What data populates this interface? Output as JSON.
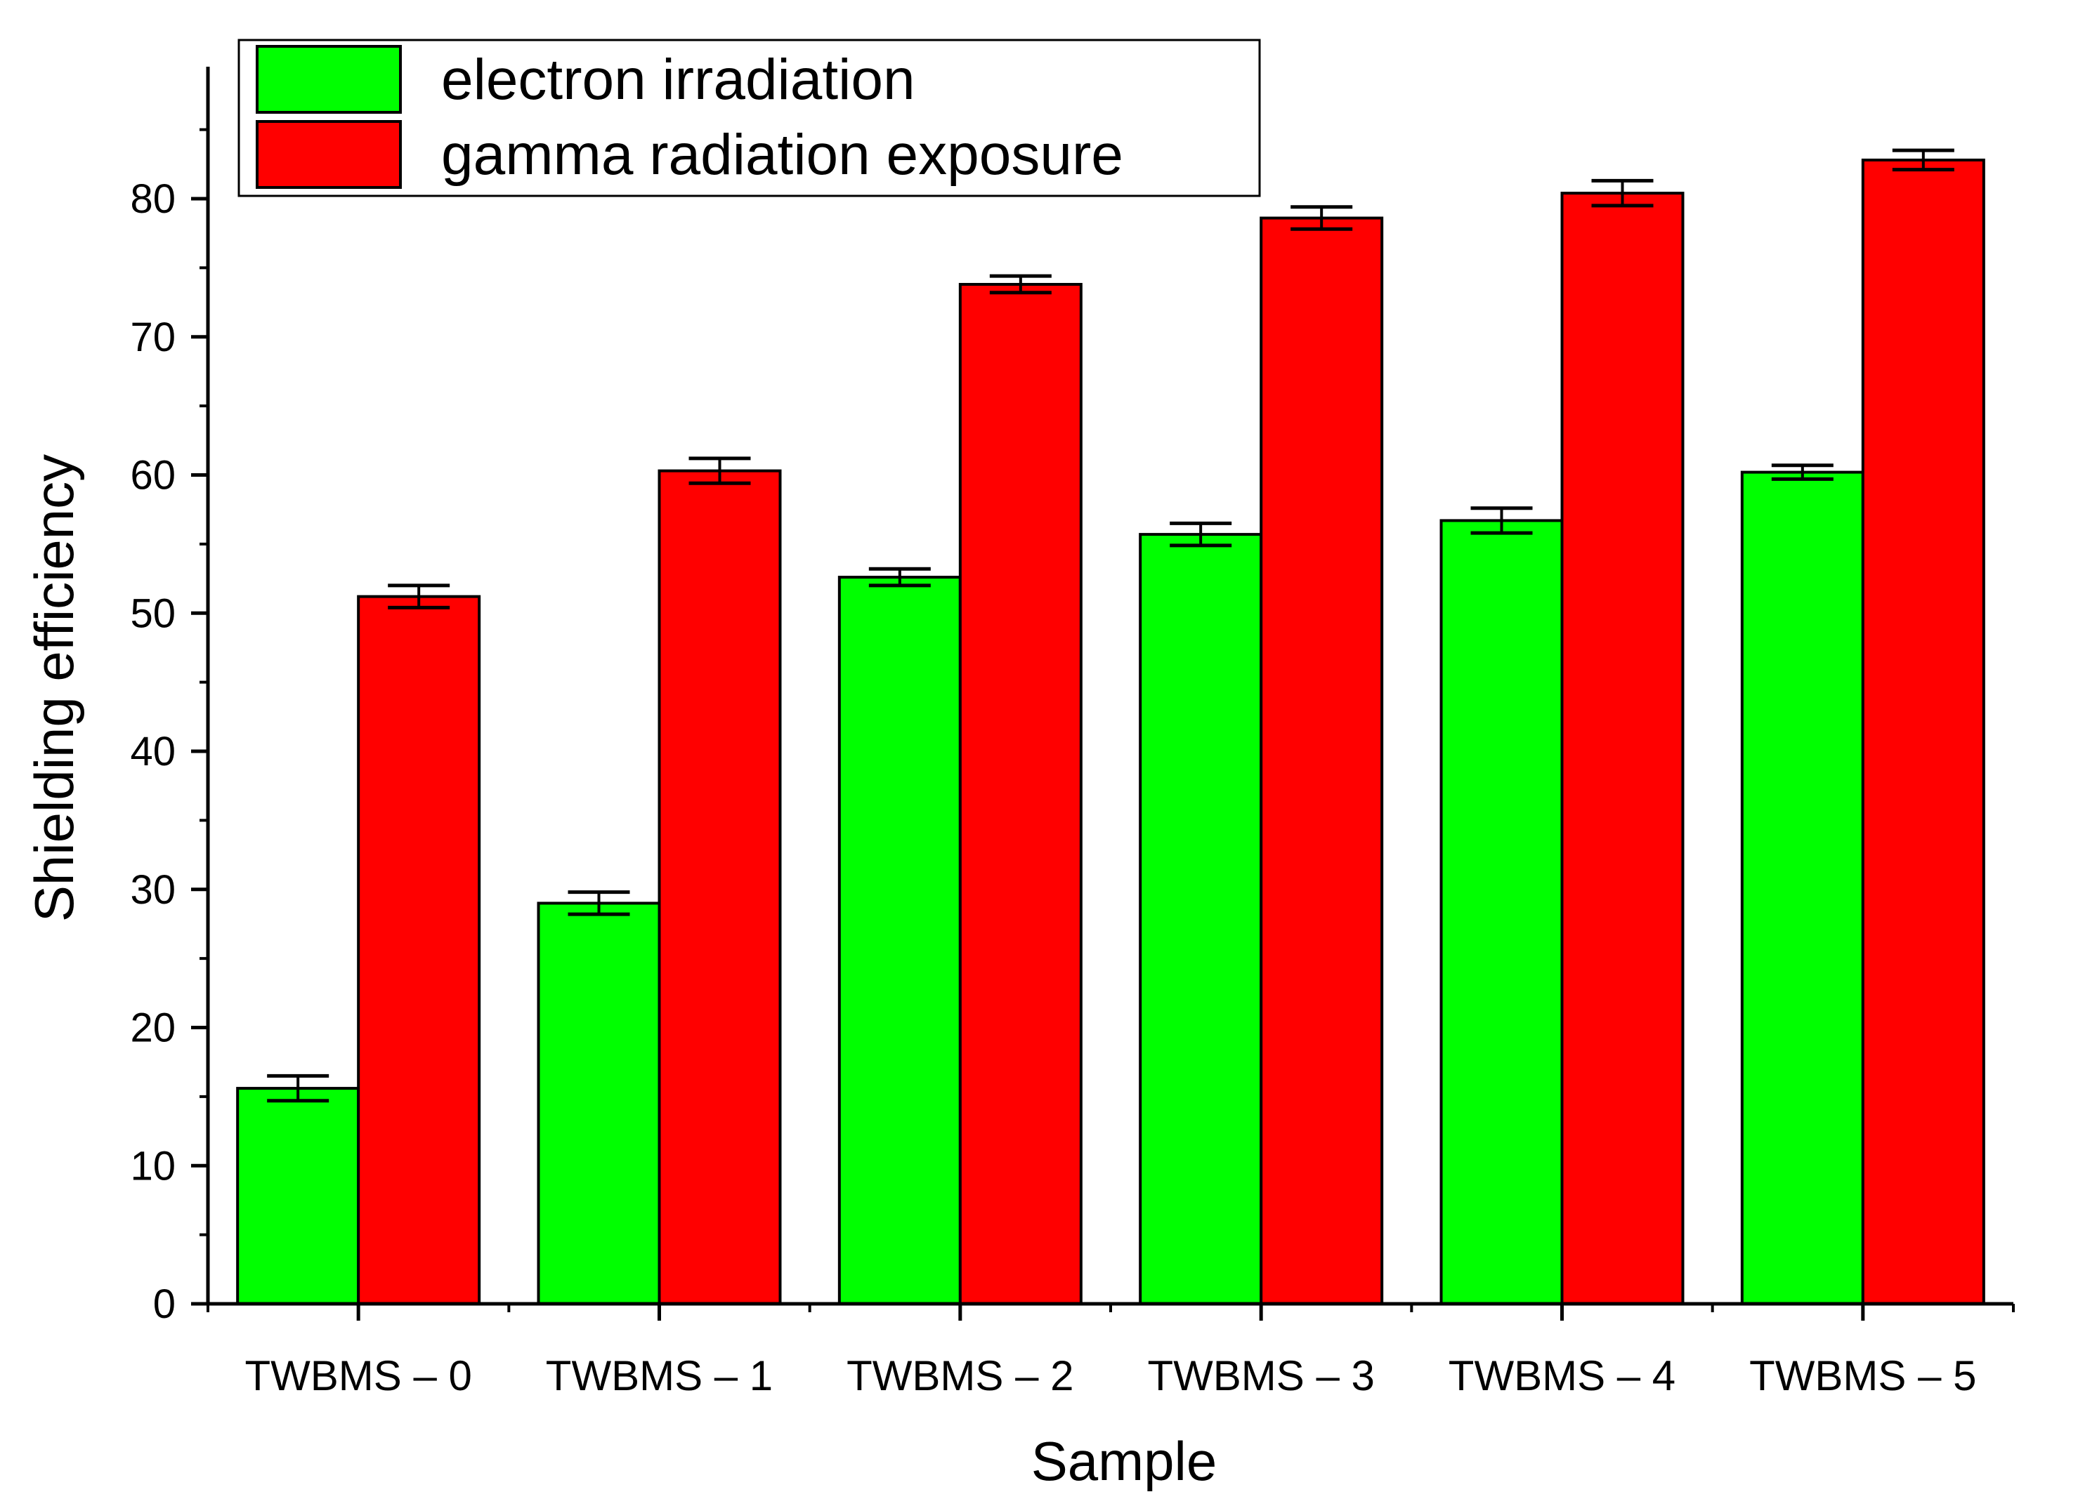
{
  "chart_data": {
    "type": "bar",
    "xlabel": "Sample",
    "ylabel": "Shielding efficiency",
    "ylim": [
      0,
      90
    ],
    "yticks": [
      0,
      10,
      20,
      30,
      40,
      50,
      60,
      70,
      80
    ],
    "categories": [
      "TWBMS – 0",
      "TWBMS – 1",
      "TWBMS – 2",
      "TWBMS – 3",
      "TWBMS – 4",
      "TWBMS – 5"
    ],
    "series": [
      {
        "name": "electron irradiation",
        "color": "#00ff00",
        "values": [
          15.6,
          29.0,
          52.6,
          55.7,
          56.7,
          60.2
        ],
        "errors": [
          0.9,
          0.8,
          0.6,
          0.8,
          0.9,
          0.5
        ]
      },
      {
        "name": "gamma radiation exposure",
        "color": "#ff0000",
        "values": [
          51.2,
          60.3,
          73.8,
          78.6,
          80.4,
          82.8
        ],
        "errors": [
          0.8,
          0.9,
          0.6,
          0.8,
          0.9,
          0.7
        ]
      }
    ],
    "legend_position": "top-left",
    "grid": false
  }
}
